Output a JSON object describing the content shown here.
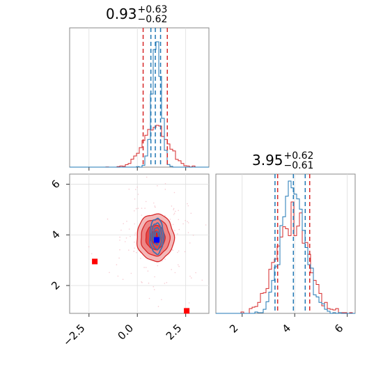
{
  "chart_data": {
    "type": "corner",
    "parameters": [
      {
        "title": {
          "value": "0.93",
          "plus": "+0.63",
          "minus": "−0.62"
        },
        "xlim": [
          -3.5,
          3.7
        ],
        "red_quantiles": [
          0.3,
          1.55
        ],
        "blue_quantiles": [
          0.7,
          0.93,
          1.2
        ],
        "ticks": [
          {
            "v": -2.5,
            "label": "−2.5"
          },
          {
            "v": 0.0,
            "label": "0.0"
          },
          {
            "v": 2.5,
            "label": "2.5"
          }
        ]
      },
      {
        "title": {
          "value": "3.95",
          "plus": "+0.62",
          "minus": "−0.61"
        },
        "xlim": [
          1.0,
          6.3
        ],
        "red_quantiles": [
          3.35,
          4.57
        ],
        "blue_quantiles": [
          3.25,
          3.95,
          4.4
        ],
        "ticks": [
          {
            "v": 2,
            "label": "2"
          },
          {
            "v": 4,
            "label": "4"
          },
          {
            "v": 6,
            "label": "6"
          }
        ]
      }
    ],
    "series": [
      {
        "color": "#d62728",
        "mean": [
          0.93,
          3.9
        ],
        "sd": [
          0.62,
          0.6
        ]
      },
      {
        "color": "#1f77b4",
        "mean": [
          1.0,
          3.95
        ],
        "sd": [
          0.23,
          0.45
        ]
      }
    ],
    "markers": [
      {
        "x": -2.2,
        "y": 2.95,
        "color": "#ff0000"
      },
      {
        "x": 2.55,
        "y": 1.0,
        "color": "#ff0000"
      },
      {
        "x": 1.0,
        "y": 3.8,
        "color": "#0000ff"
      }
    ],
    "grid": true,
    "legend": "none"
  }
}
